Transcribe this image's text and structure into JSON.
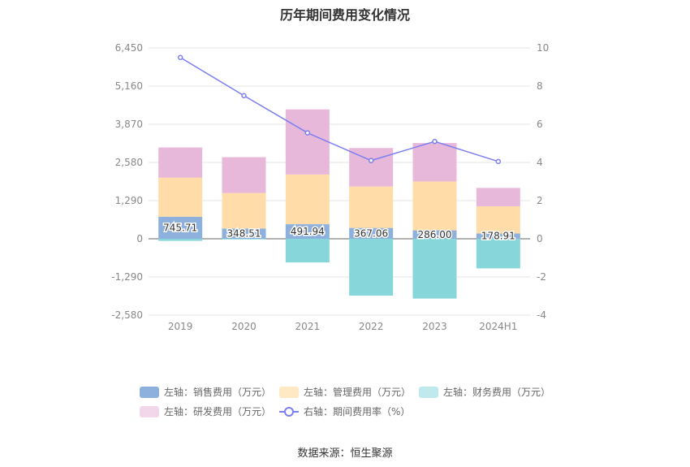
{
  "chart_data": {
    "type": "bar",
    "title": "历年期间费用变化情况",
    "categories": [
      "2019",
      "2020",
      "2021",
      "2022",
      "2023",
      "2024H1"
    ],
    "left_axis": {
      "ticks": [
        "6,450",
        "5,160",
        "3,870",
        "2,580",
        "1,290",
        "0",
        "-1,290",
        "-2,580"
      ],
      "ylim": [
        -2580,
        6450
      ]
    },
    "right_axis": {
      "ticks": [
        "10",
        "8",
        "6",
        "4",
        "2",
        "0",
        "-2",
        "-4"
      ],
      "ylim": [
        -4,
        10
      ]
    },
    "series": [
      {
        "name": "左轴：销售费用（万元）",
        "color": "#8eb0dd",
        "values": [
          745.71,
          348.51,
          491.94,
          367.06,
          286.0,
          178.91
        ],
        "labels": [
          "745.71",
          "348.51",
          "491.94",
          "367.06",
          "286.00",
          "178.91"
        ]
      },
      {
        "name": "左轴：管理费用（万元）",
        "color": "#ffdca8",
        "values": [
          1320,
          1200,
          1680,
          1400,
          1650,
          920
        ]
      },
      {
        "name": "左轴：财务费用（万元）",
        "color": "#86d6da",
        "values": [
          -70,
          -20,
          -800,
          -1920,
          -2020,
          -1000
        ]
      },
      {
        "name": "左轴：研发费用（万元）",
        "color": "#e8b8da",
        "values": [
          1020,
          1210,
          2200,
          1300,
          1300,
          620
        ]
      },
      {
        "name": "右轴：期间费用率（%）",
        "color": "#7b7ff0",
        "type": "line",
        "axis": "right",
        "values": [
          9.5,
          7.5,
          5.55,
          4.1,
          5.1,
          4.05
        ]
      }
    ],
    "legend_position": "bottom",
    "grid": true
  },
  "source": "数据来源：恒生聚源"
}
